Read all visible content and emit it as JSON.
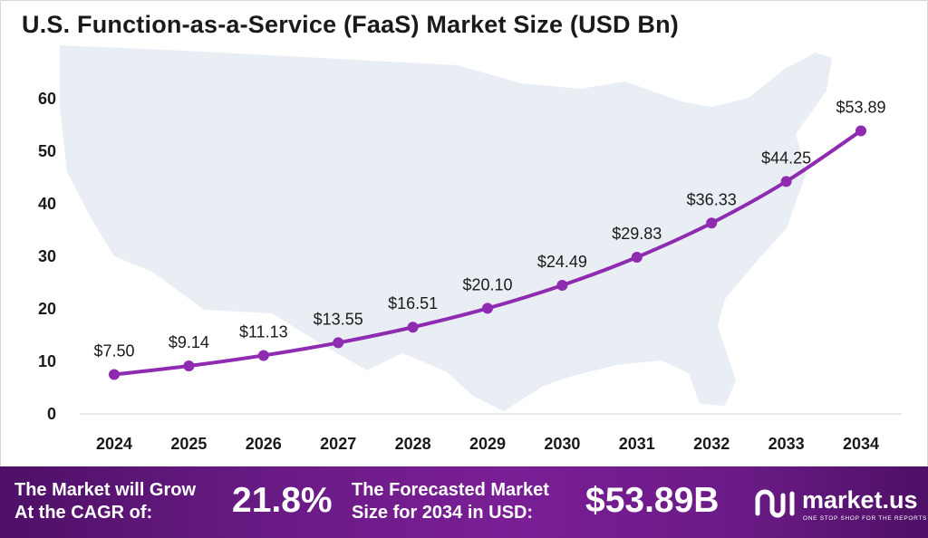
{
  "title": "U.S. Function-as-a-Service (FaaS) Market Size (USD Bn)",
  "chart_data": {
    "type": "line",
    "title": "U.S. Function-as-a-Service (FaaS) Market Size (USD Bn)",
    "categories": [
      "2024",
      "2025",
      "2026",
      "2027",
      "2028",
      "2029",
      "2030",
      "2031",
      "2032",
      "2033",
      "2034"
    ],
    "values": [
      7.5,
      9.14,
      11.13,
      13.55,
      16.51,
      20.1,
      24.49,
      29.83,
      36.33,
      44.25,
      53.89
    ],
    "data_labels": [
      "$7.50",
      "$9.14",
      "$11.13",
      "$13.55",
      "$16.51",
      "$20.10",
      "$24.49",
      "$29.83",
      "$36.33",
      "$44.25",
      "$53.89"
    ],
    "yticks": [
      "0",
      "10",
      "20",
      "30",
      "40",
      "50",
      "60"
    ],
    "ylim": [
      0,
      60
    ],
    "grid": false,
    "legend": "none",
    "line_color": "#8e2bb0",
    "background_map": "united-states-map"
  },
  "footer": {
    "cagr_text_line1": "The Market will Grow",
    "cagr_text_line2": "At the CAGR of:",
    "cagr_value": "21.8%",
    "forecast_text_line1": "The Forecasted Market",
    "forecast_text_line2": "Size for 2034 in USD:",
    "forecast_value": "$53.89B",
    "brand_name": "market.us",
    "brand_tagline": "ONE STOP SHOP FOR THE REPORTS",
    "brand_icon": "market-us-logo-icon"
  },
  "colors": {
    "accent": "#8e2bb0",
    "footer_bg": "#6a1b86",
    "map": "#e9eef5"
  }
}
